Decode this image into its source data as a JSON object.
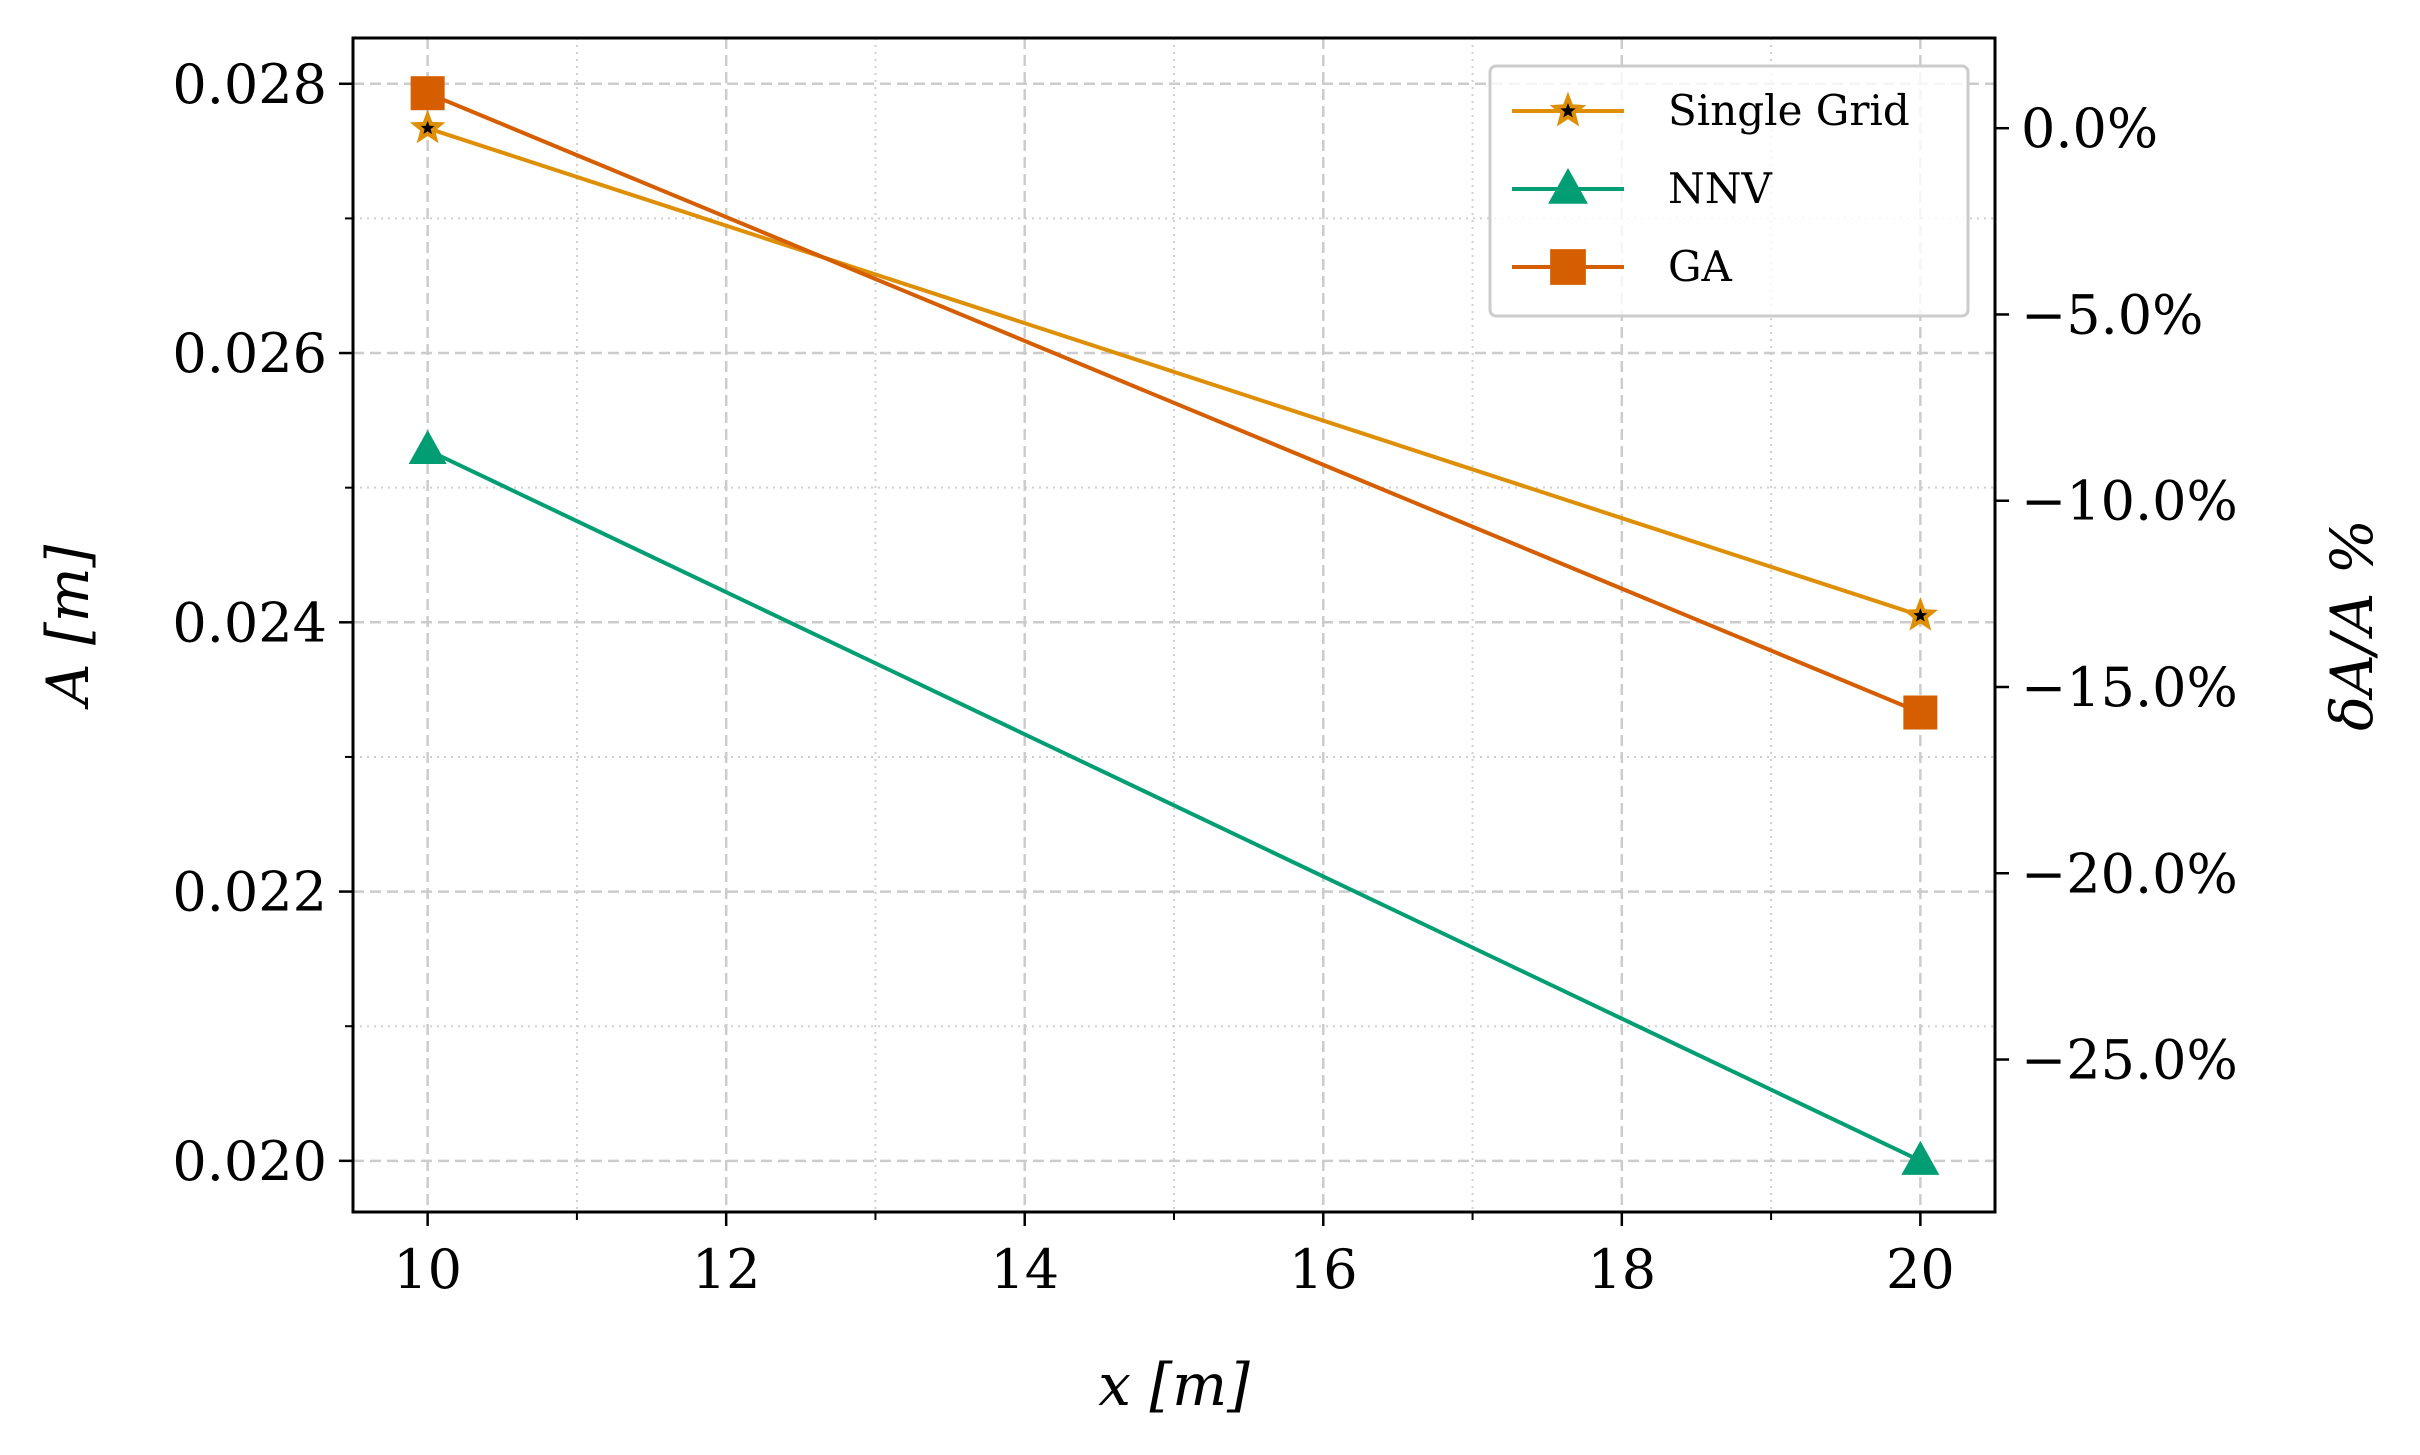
{
  "chart_data": {
    "type": "line",
    "xlabel": "x [m]",
    "ylabel": "A [m]",
    "y2label": "δA/A %",
    "xlim": [
      9.5,
      20.5
    ],
    "ylim": [
      0.01962,
      0.02834
    ],
    "x_ticks": [
      10,
      12,
      14,
      16,
      18,
      20
    ],
    "x_tick_labels": [
      "10",
      "12",
      "14",
      "16",
      "18",
      "20"
    ],
    "y_ticks": [
      0.02,
      0.022,
      0.024,
      0.026,
      0.028
    ],
    "y_tick_labels": [
      "0.020",
      "0.022",
      "0.024",
      "0.026",
      "0.028"
    ],
    "y2_reference": 0.02767,
    "y2_ticks": [
      0,
      -5,
      -10,
      -15,
      -20,
      -25
    ],
    "y2_tick_labels": [
      "0.0%",
      "−5.0%",
      "−10.0%",
      "−15.0%",
      "−20.0%",
      "−25.0%"
    ],
    "grid": true,
    "legend_position": "top-right",
    "series": [
      {
        "name": "Single Grid",
        "x": [
          10,
          20
        ],
        "values": [
          0.02767,
          0.02405
        ],
        "color": "#de8f05",
        "marker": "star"
      },
      {
        "name": "NNV",
        "x": [
          10,
          20
        ],
        "values": [
          0.02528,
          0.02
        ],
        "color": "#029e73",
        "marker": "triangle"
      },
      {
        "name": "GA",
        "x": [
          10,
          20
        ],
        "values": [
          0.02793,
          0.02333
        ],
        "color": "#d55e00",
        "marker": "square"
      }
    ]
  }
}
